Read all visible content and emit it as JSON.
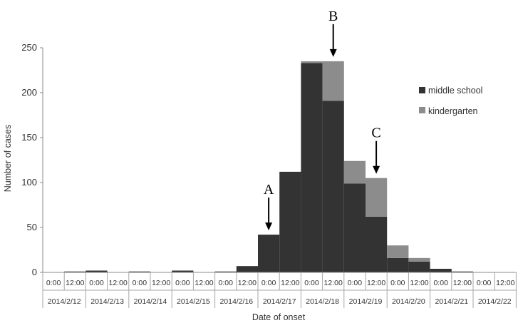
{
  "chart_data": {
    "type": "bar",
    "stacked": true,
    "xlabel": "Date of onset",
    "ylabel": "Number of cases",
    "ylim": [
      0,
      250
    ],
    "yticks": [
      0,
      50,
      100,
      150,
      200,
      250
    ],
    "grid": false,
    "legend_position": "right",
    "time_labels": [
      "0:00",
      "12:00"
    ],
    "dates": [
      "2014/2/12",
      "2014/2/13",
      "2014/2/14",
      "2014/2/15",
      "2014/2/16",
      "2014/2/17",
      "2014/2/18",
      "2014/2/19",
      "2014/2/20",
      "2014/2/21",
      "2014/2/22"
    ],
    "x": [
      "2014/2/12 0:00",
      "2014/2/12 12:00",
      "2014/2/13 0:00",
      "2014/2/13 12:00",
      "2014/2/14 0:00",
      "2014/2/14 12:00",
      "2014/2/15 0:00",
      "2014/2/15 12:00",
      "2014/2/16 0:00",
      "2014/2/16 12:00",
      "2014/2/17 0:00",
      "2014/2/17 12:00",
      "2014/2/18 0:00",
      "2014/2/18 12:00",
      "2014/2/19 0:00",
      "2014/2/19 12:00",
      "2014/2/20 0:00",
      "2014/2/20 12:00",
      "2014/2/21 0:00",
      "2014/2/21 12:00",
      "2014/2/22 0:00",
      "2014/2/22 12:00"
    ],
    "series": [
      {
        "name": "middle school",
        "color": "#333333",
        "values": [
          0,
          1,
          2,
          0,
          1,
          0,
          2,
          0,
          1,
          7,
          42,
          112,
          233,
          191,
          99,
          62,
          16,
          12,
          4,
          1,
          0,
          0
        ]
      },
      {
        "name": "kindergarten",
        "color": "#8c8c8c",
        "values": [
          0,
          0,
          0,
          0,
          0,
          0,
          0,
          0,
          0,
          0,
          0,
          0,
          2,
          44,
          25,
          43,
          14,
          4,
          0,
          0,
          0,
          0
        ]
      }
    ],
    "annotations": [
      {
        "label": "A",
        "x": "2014/2/17 0:00"
      },
      {
        "label": "B",
        "x": "2014/2/18 12:00"
      },
      {
        "label": "C",
        "x": "2014/2/19 12:00"
      }
    ]
  }
}
